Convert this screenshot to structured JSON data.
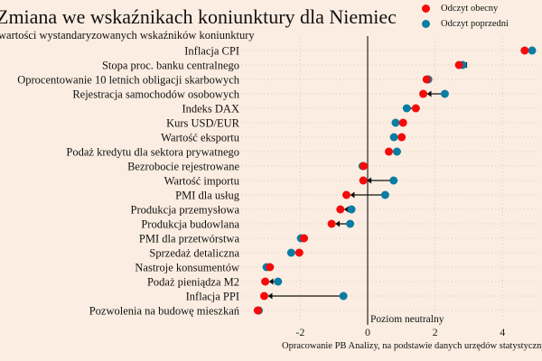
{
  "title": "Zmiana we wskaźnikach koniunktury dla Niemiec",
  "subtitle": "wartości wystandaryzowanych wskaźników koniunktury",
  "colors": {
    "current": "#f50a0a",
    "previous": "#0b7ca3",
    "background": "#fbede1"
  },
  "chart_data": {
    "type": "scatter",
    "subtype": "dumbbell-arrow",
    "title": "Zmiana we wskaźnikach koniunktury dla Niemiec",
    "subtitle": "wartości wystandaryzowanych wskaźników koniunktury",
    "legend": {
      "placement": "top-right",
      "entries": [
        "Odczyt obecny",
        "Odczyt poprzedni"
      ]
    },
    "xlim": [
      -3.5,
      5
    ],
    "xticks": [
      -2,
      0,
      2,
      4
    ],
    "xtick_labels": [
      "-2",
      "0",
      "2",
      "4"
    ],
    "grid": true,
    "reference_line": {
      "x": 0,
      "label": "Poziom neutralny"
    },
    "caption": "Opracowanie PB Analizy, na podstawie danych urzędów statystycznych",
    "categories": [
      "Inflacja CPI",
      "Stopa proc. banku centralnego",
      "Oprocentowanie 10 letnich obligacji skarbowych",
      "Rejestracja samochodów osobowych",
      "Indeks DAX",
      "Kurs USD/EUR",
      "Wartość eksportu",
      "Podaż kredytu dla sektora prywatnego",
      "Bezrobocie rejestrowane",
      "Wartość importu",
      "PMI dla usług",
      "Produkcja przemysłowa",
      "Produkcja budowlana",
      "PMI dla przetwórstwa",
      "Sprzedaż detaliczna",
      "Nastroje konsumentów",
      "Podaż pieniądza M2",
      "Inflacja PPI",
      "Pozwolenia na budowę mieszkań"
    ],
    "series": [
      {
        "name": "Odczyt obecny",
        "values": [
          4.66,
          2.71,
          1.75,
          1.65,
          1.43,
          1.05,
          1.01,
          0.63,
          -0.12,
          -0.13,
          -0.63,
          -0.81,
          -1.07,
          -1.89,
          -2.03,
          -2.9,
          -3.04,
          -3.07,
          -3.26
        ]
      },
      {
        "name": "Odczyt poprzedni",
        "values": [
          4.88,
          2.82,
          1.8,
          2.29,
          1.16,
          0.83,
          0.78,
          0.87,
          -0.15,
          0.77,
          0.52,
          -0.48,
          -0.52,
          -1.98,
          -2.27,
          -3.0,
          -2.66,
          -0.72,
          -3.23
        ]
      }
    ]
  }
}
